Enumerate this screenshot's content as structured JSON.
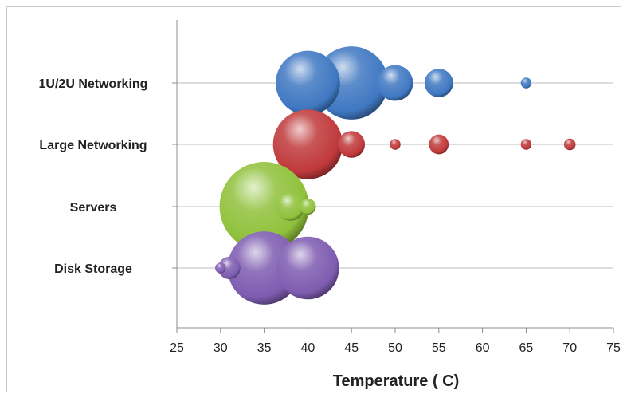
{
  "chart_data": {
    "type": "bubble",
    "title": "",
    "xlabel": "Temperature ( C)",
    "ylabel": "",
    "xlim": [
      25,
      75
    ],
    "xticks": [
      25,
      30,
      35,
      40,
      45,
      50,
      55,
      60,
      65,
      70,
      75
    ],
    "categories": [
      "1U/2U Networking",
      "Large Networking",
      "Servers",
      "Disk Storage"
    ],
    "grid": "horizontal",
    "legend": "none",
    "series": [
      {
        "category": "1U/2U Networking",
        "color": "#3f78c2",
        "points": [
          {
            "x": 40,
            "size": 0.72
          },
          {
            "x": 45,
            "size": 0.82
          },
          {
            "x": 50,
            "size": 0.4
          },
          {
            "x": 55,
            "size": 0.32
          },
          {
            "x": 65,
            "size": 0.12
          }
        ]
      },
      {
        "category": "Large Networking",
        "color": "#c0393b",
        "points": [
          {
            "x": 40,
            "size": 0.78
          },
          {
            "x": 45,
            "size": 0.3
          },
          {
            "x": 50,
            "size": 0.12
          },
          {
            "x": 55,
            "size": 0.22
          },
          {
            "x": 65,
            "size": 0.12
          },
          {
            "x": 70,
            "size": 0.13
          }
        ]
      },
      {
        "category": "Servers",
        "color": "#8fc13b",
        "points": [
          {
            "x": 35,
            "size": 1.0
          },
          {
            "x": 38,
            "size": 0.32
          },
          {
            "x": 40,
            "size": 0.18
          }
        ]
      },
      {
        "category": "Disk Storage",
        "color": "#7e5cb0",
        "points": [
          {
            "x": 30,
            "size": 0.12
          },
          {
            "x": 31,
            "size": 0.25
          },
          {
            "x": 35,
            "size": 0.82
          },
          {
            "x": 40,
            "size": 0.7
          }
        ]
      }
    ]
  }
}
